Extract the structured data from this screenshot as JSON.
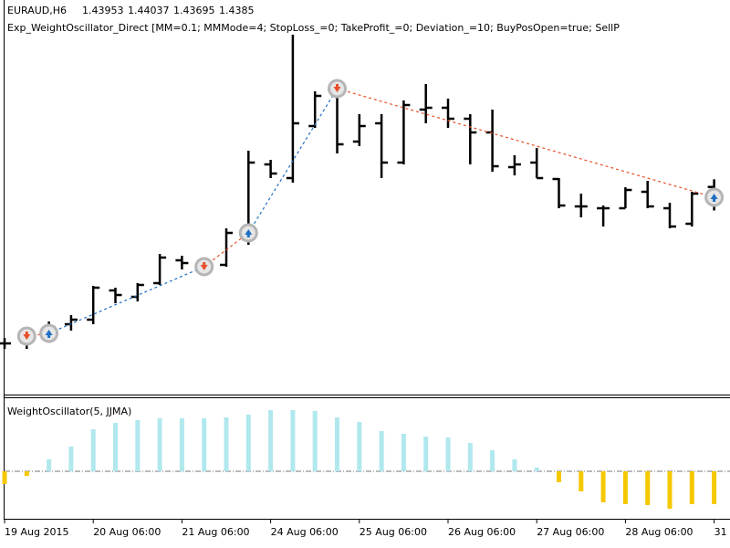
{
  "chart_data": [
    {
      "type": "ohlc",
      "title": "EURAUD,H6",
      "subtitle": "Exp_WeightOscillator_Direct [MM=0.1; MMMode=4; StopLoss_=0; TakeProfit_=0; Deviation_=10; BuyPosOpen=true; SellP",
      "categories": [
        "19 Aug 2015",
        null,
        null,
        null,
        "20 Aug 06:00",
        null,
        null,
        null,
        "21 Aug 06:00",
        null,
        null,
        null,
        "24 Aug 06:00",
        null,
        null,
        null,
        "25 Aug 06:00",
        null,
        null,
        null,
        "26 Aug 06:00",
        null,
        null,
        null,
        "27 Aug 06:00",
        null,
        null,
        null,
        "28 Aug 06:00",
        null,
        null,
        null,
        "31"
      ],
      "open": [
        1.4224,
        1.4225,
        1.4235,
        1.4245,
        1.425,
        1.4282,
        1.4275,
        1.429,
        1.4315,
        1.4308,
        1.431,
        1.4338,
        1.442,
        1.4405,
        1.4462,
        1.45,
        1.4445,
        1.4465,
        1.4422,
        1.448,
        1.4482,
        1.447,
        1.4455,
        1.4417,
        1.4422,
        1.4404,
        1.4374,
        1.4372,
        1.4372,
        1.439,
        1.4372,
        1.4355,
        1.43953
      ],
      "high": [
        1.423,
        1.4238,
        1.4248,
        1.4255,
        1.4287,
        1.4285,
        1.429,
        1.4322,
        1.432,
        1.4315,
        1.435,
        1.4435,
        1.4425,
        1.457,
        1.45,
        1.4505,
        1.4475,
        1.4475,
        1.449,
        1.4508,
        1.4492,
        1.4475,
        1.448,
        1.443,
        1.4438,
        1.4405,
        1.4388,
        1.4375,
        1.4395,
        1.4402,
        1.4378,
        1.439,
        1.44037
      ],
      "low": [
        1.4218,
        1.4218,
        1.4228,
        1.4238,
        1.4245,
        1.4268,
        1.427,
        1.4288,
        1.4305,
        1.4298,
        1.4308,
        1.4332,
        1.4405,
        1.44,
        1.446,
        1.4432,
        1.444,
        1.4405,
        1.442,
        1.4465,
        1.446,
        1.442,
        1.4412,
        1.4408,
        1.4405,
        1.4372,
        1.4362,
        1.4352,
        1.4372,
        1.4372,
        1.435,
        1.4352,
        1.43695
      ],
      "close": [
        1.4224,
        1.4228,
        1.4242,
        1.425,
        1.4285,
        1.4277,
        1.4288,
        1.4318,
        1.4312,
        1.4307,
        1.4345,
        1.4422,
        1.441,
        1.4465,
        1.4495,
        1.4442,
        1.4462,
        1.4422,
        1.4485,
        1.4482,
        1.447,
        1.4455,
        1.4418,
        1.442,
        1.4405,
        1.4375,
        1.4374,
        1.4372,
        1.4392,
        1.4374,
        1.4352,
        1.4388,
        1.4385
      ],
      "color": "#000000",
      "ylim": [
        1.4168,
        1.46
      ],
      "sells": [
        {
          "bar": 1,
          "price": 1.4232
        },
        {
          "bar": 9,
          "price": 1.4308
        },
        {
          "bar": 15,
          "price": 1.4503
        }
      ],
      "buys": [
        {
          "bar": 2,
          "price": 1.4235
        },
        {
          "bar": 11,
          "price": 1.4345
        },
        {
          "bar": 32,
          "price": 1.4384
        }
      ],
      "sell_color": "#e8502a",
      "buy_color": "#1f6fc5"
    },
    {
      "type": "bar",
      "title": "WeightOscillator(5, JJMA)",
      "values": [
        -14,
        -5,
        13,
        27,
        46,
        53,
        56,
        58,
        58,
        58,
        59,
        62,
        67,
        67,
        66,
        59,
        54,
        44,
        41,
        38,
        37,
        31,
        23,
        13,
        4,
        -12,
        -22,
        -34,
        -36,
        -37,
        -41,
        -36,
        -36
      ],
      "up_color": "#b0e8ee",
      "down_color": "#f5c800",
      "ylim": [
        -52,
        80
      ]
    }
  ]
}
